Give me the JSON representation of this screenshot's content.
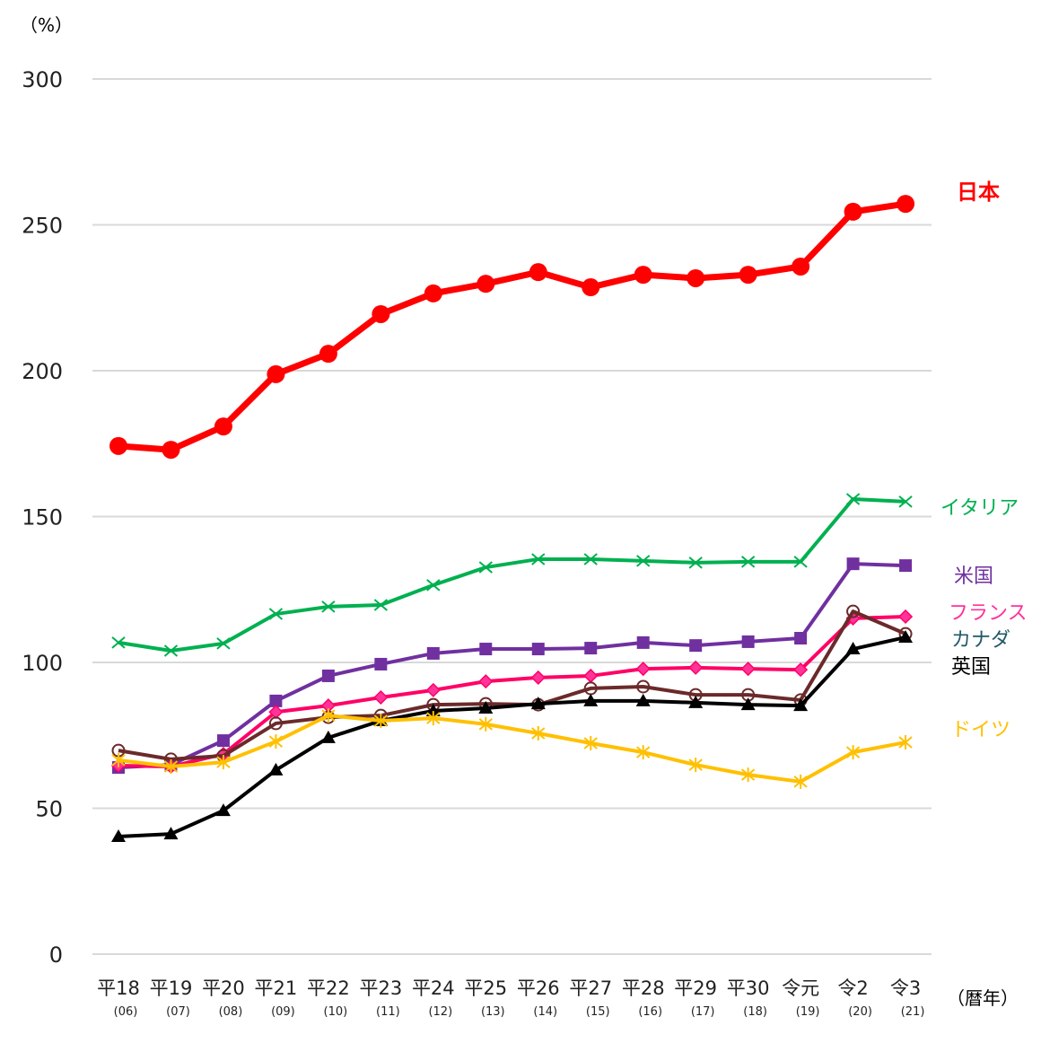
{
  "chart_data": {
    "type": "line",
    "ylabel": "（%）",
    "xlabel": "（暦年）",
    "ylim": [
      0,
      300
    ],
    "yticks": [
      0,
      50,
      100,
      150,
      200,
      250,
      300
    ],
    "grid": true,
    "legend": "right, labels beside line ends",
    "categories": [
      "平18",
      "平19",
      "平20",
      "平21",
      "平22",
      "平23",
      "平24",
      "平25",
      "平26",
      "平27",
      "平28",
      "平29",
      "平30",
      "令元",
      "令2",
      "令3"
    ],
    "subcategories": [
      "(06)",
      "(07)",
      "(08)",
      "(09)",
      "(10)",
      "(11)",
      "(12)",
      "(13)",
      "(14)",
      "(15)",
      "(16)",
      "(17)",
      "(18)",
      "(19)",
      "(20)",
      "(21)"
    ],
    "series": [
      {
        "name": "日本",
        "color": "#ff0000",
        "label_color": "#ff0000",
        "marker": "circle",
        "values": [
          174.2,
          172.9,
          180.9,
          198.8,
          205.8,
          219.4,
          226.5,
          229.8,
          233.8,
          228.6,
          232.9,
          231.7,
          232.9,
          235.7,
          254.5,
          257.2
        ]
      },
      {
        "name": "イタリア",
        "color": "#00b050",
        "label_color": "#00b050",
        "marker": "x",
        "values": [
          106.8,
          104.0,
          106.5,
          116.6,
          119.1,
          119.7,
          126.5,
          132.6,
          135.4,
          135.4,
          134.8,
          134.2,
          134.5,
          134.5,
          156.0,
          155.1
        ]
      },
      {
        "name": "米国",
        "color": "#7030a0",
        "label_color": "#7030a0",
        "marker": "square",
        "values": [
          64.0,
          64.9,
          73.2,
          86.8,
          95.4,
          99.4,
          103.1,
          104.6,
          104.6,
          104.9,
          106.8,
          105.8,
          107.1,
          108.3,
          133.8,
          133.2
        ]
      },
      {
        "name": "フランス",
        "color": "#ff0066",
        "label_color": "#ff3399",
        "marker": "diamond",
        "values": [
          64.6,
          64.3,
          68.6,
          83.0,
          85.2,
          88.0,
          90.5,
          93.5,
          94.8,
          95.4,
          97.8,
          98.2,
          97.8,
          97.5,
          115.1,
          115.7
        ]
      },
      {
        "name": "カナダ",
        "color": "#6b2a2a",
        "label_color": "#215968",
        "marker": "open-circle",
        "values": [
          69.8,
          66.8,
          68.0,
          79.1,
          81.2,
          81.8,
          85.5,
          85.8,
          85.5,
          91.1,
          91.7,
          88.9,
          88.9,
          87.1,
          117.5,
          109.8
        ]
      },
      {
        "name": "英国",
        "color": "#000000",
        "label_color": "#000000",
        "marker": "triangle",
        "values": [
          40.3,
          41.2,
          49.2,
          63.1,
          74.2,
          80.0,
          83.4,
          84.3,
          85.8,
          86.8,
          86.8,
          86.2,
          85.5,
          85.2,
          104.6,
          108.6
        ]
      },
      {
        "name": "ドイツ",
        "color": "#ffc000",
        "label_color": "#ffc000",
        "marker": "asterisk",
        "values": [
          66.5,
          64.3,
          65.8,
          72.9,
          81.8,
          80.0,
          80.9,
          78.8,
          75.7,
          72.3,
          69.2,
          64.9,
          61.5,
          59.1,
          69.2,
          72.6
        ]
      }
    ]
  }
}
